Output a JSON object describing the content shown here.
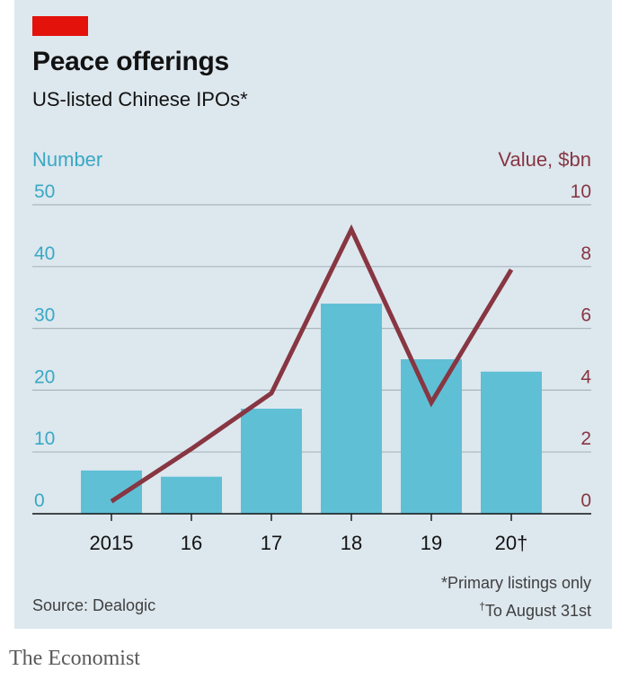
{
  "header": {
    "title": "Peace offerings",
    "subtitle": "US-listed Chinese IPOs*"
  },
  "footer": {
    "source": "Source: Dealogic",
    "note_primary": "*Primary listings only",
    "note_dagger_mark": "†",
    "note_dagger_text": "To August 31st",
    "brand": "The Economist"
  },
  "colors": {
    "panel": "#dde7ee",
    "accent_red": "#e3120b",
    "bar": "#5fbfd5",
    "line": "#873642",
    "left_axis_text": "#3aa8c4",
    "right_axis_text": "#873642",
    "grid": "#a8b6be",
    "axis": "#121212"
  },
  "chart_data": {
    "type": "bar",
    "categories": [
      "2015",
      "16",
      "17",
      "18",
      "19",
      "20†"
    ],
    "series": [
      {
        "name": "Number",
        "type": "bar",
        "axis": "left",
        "values": [
          7,
          6,
          17,
          34,
          25,
          23
        ]
      },
      {
        "name": "Value, $bn",
        "type": "line",
        "axis": "right",
        "values": [
          0.4,
          2.1,
          3.9,
          9.2,
          3.6,
          7.9
        ]
      }
    ],
    "left_axis": {
      "label": "Number",
      "ylim": [
        0,
        50
      ],
      "ticks": [
        "0",
        "10",
        "20",
        "30",
        "40",
        "50"
      ]
    },
    "right_axis": {
      "label": "Value, $bn",
      "ylim": [
        0,
        10
      ],
      "ticks": [
        "0",
        "2",
        "4",
        "6",
        "8",
        "10"
      ]
    },
    "grid": true
  }
}
